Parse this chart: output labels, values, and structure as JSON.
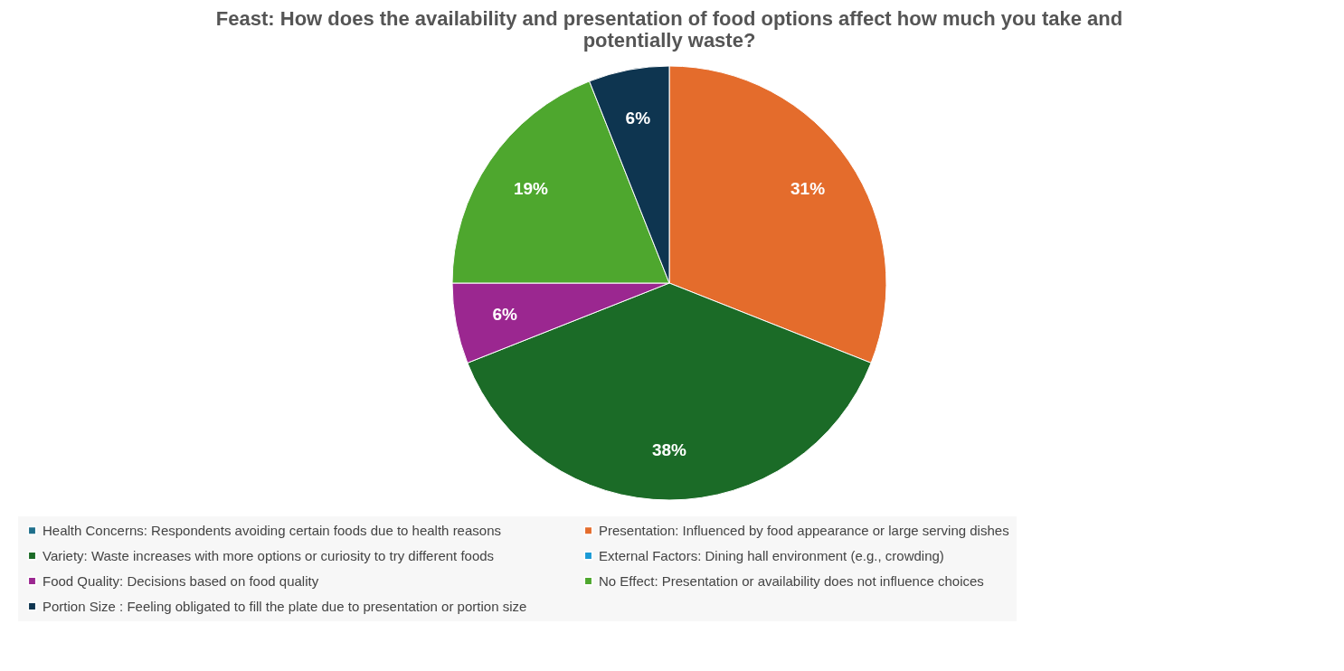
{
  "chart_data": {
    "type": "pie",
    "title": "Feast: How does the availability and presentation of food options affect how much you take and potentially waste?",
    "categories": [
      "Health Concerns: Respondents avoiding certain foods due to health reasons",
      "Presentation: Influenced by food appearance or large serving dishes",
      "Variety: Waste increases with more options or curiosity to try different foods",
      "External Factors: Dining hall environment (e.g., crowding)",
      "Food Quality: Decisions based on food quality",
      "No Effect: Presentation or availability does not influence choices",
      "Portion Size : Feeling obligated to fill the plate due to presentation or portion size"
    ],
    "values": [
      0,
      31,
      38,
      0,
      6,
      19,
      6
    ],
    "colors": [
      "#1f6f8b",
      "#e46c2c",
      "#1b6b27",
      "#1a9ad6",
      "#9b2790",
      "#4ea72e",
      "#0e3550"
    ],
    "value_labels": [
      null,
      "31%",
      "38%",
      null,
      "6%",
      "19%",
      "6%"
    ],
    "legend": "bottom"
  }
}
